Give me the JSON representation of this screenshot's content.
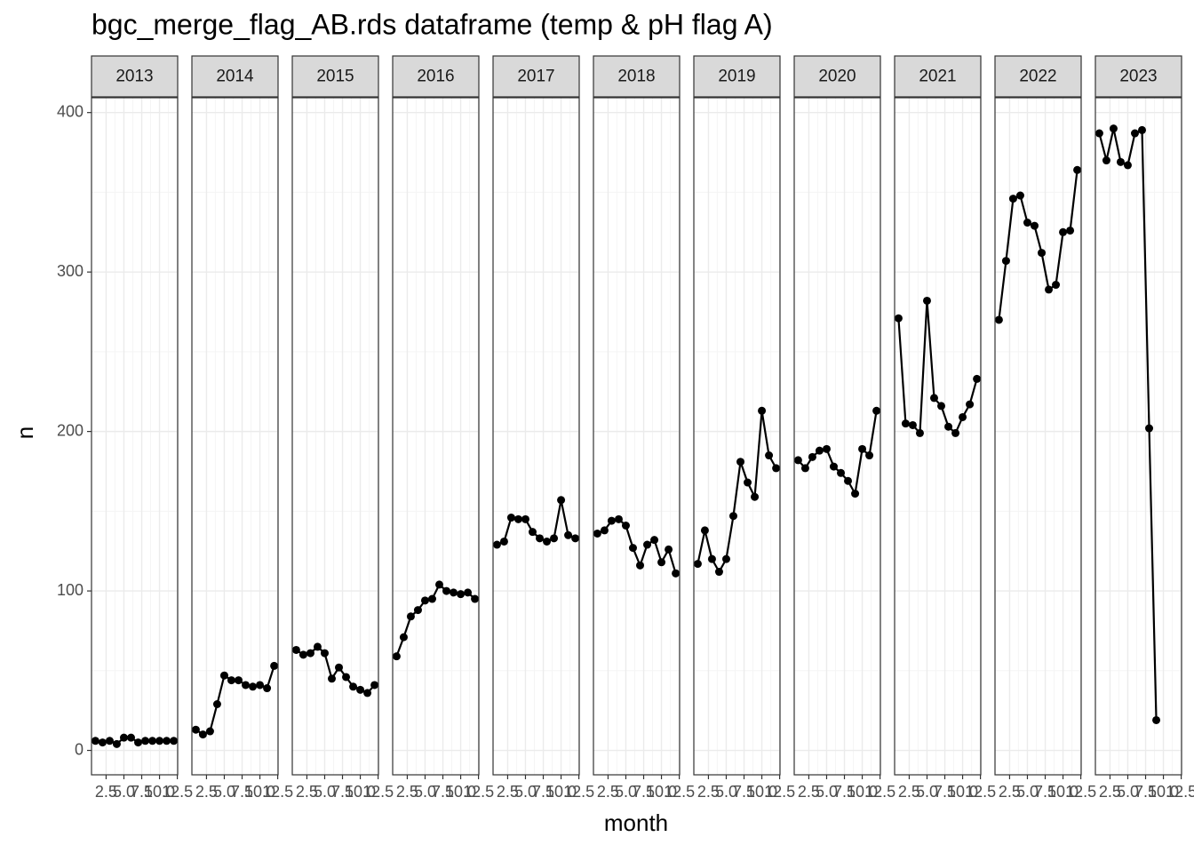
{
  "chart_data": {
    "type": "line",
    "title": "bgc_merge_flag_AB.rds dataframe (temp & pH flag A)",
    "x_label": "month",
    "y_label": "n",
    "xlim": [
      0.45,
      12.55
    ],
    "xticks": [
      2.5,
      {
        "value": 5,
        "label": "5.0"
      },
      7.5,
      {
        "value": 10,
        "label": "10.0"
      },
      12.5
    ],
    "ylim": [
      -15.3,
      409.3
    ],
    "yticks": [
      0,
      100,
      200,
      300,
      400
    ],
    "grid": true,
    "color": "#000000",
    "facets": [
      {
        "name": "2013",
        "x": [
          1,
          2,
          3,
          4,
          5,
          6,
          7,
          8,
          9,
          10,
          11,
          12
        ],
        "values": [
          6,
          5,
          6,
          4,
          8,
          8,
          5,
          6,
          6,
          6,
          6,
          6
        ]
      },
      {
        "name": "2014",
        "x": [
          1,
          2,
          3,
          4,
          5,
          6,
          7,
          8,
          9,
          10,
          11,
          12
        ],
        "values": [
          13,
          10,
          12,
          29,
          47,
          44,
          44,
          41,
          40,
          41,
          39,
          53
        ]
      },
      {
        "name": "2015",
        "x": [
          1,
          2,
          3,
          4,
          5,
          6,
          7,
          8,
          9,
          10,
          11,
          12
        ],
        "values": [
          63,
          60,
          61,
          65,
          61,
          45,
          52,
          46,
          40,
          38,
          36,
          41
        ]
      },
      {
        "name": "2016",
        "x": [
          1,
          2,
          3,
          4,
          5,
          6,
          7,
          8,
          9,
          10,
          11,
          12
        ],
        "values": [
          59,
          71,
          84,
          88,
          94,
          95,
          104,
          100,
          99,
          98,
          99,
          95
        ]
      },
      {
        "name": "2017",
        "x": [
          1,
          2,
          3,
          4,
          5,
          6,
          7,
          8,
          9,
          10,
          11,
          12
        ],
        "values": [
          129,
          131,
          146,
          145,
          145,
          137,
          133,
          131,
          133,
          157,
          135,
          133
        ]
      },
      {
        "name": "2018",
        "x": [
          1,
          2,
          3,
          4,
          5,
          6,
          7,
          8,
          9,
          10,
          11,
          12
        ],
        "values": [
          136,
          138,
          144,
          145,
          141,
          127,
          116,
          129,
          132,
          118,
          126,
          111
        ]
      },
      {
        "name": "2019",
        "x": [
          1,
          2,
          3,
          4,
          5,
          6,
          7,
          8,
          9,
          10,
          11,
          12
        ],
        "values": [
          117,
          138,
          120,
          112,
          120,
          147,
          181,
          168,
          159,
          213,
          185,
          177
        ]
      },
      {
        "name": "2020",
        "x": [
          1,
          2,
          3,
          4,
          5,
          6,
          7,
          8,
          9,
          10,
          11,
          12
        ],
        "values": [
          182,
          177,
          184,
          188,
          189,
          178,
          174,
          169,
          161,
          189,
          185,
          213
        ]
      },
      {
        "name": "2021",
        "x": [
          1,
          2,
          3,
          4,
          5,
          6,
          7,
          8,
          9,
          10,
          11,
          12
        ],
        "values": [
          271,
          205,
          204,
          199,
          282,
          221,
          216,
          203,
          199,
          209,
          217,
          233
        ]
      },
      {
        "name": "2022",
        "x": [
          1,
          2,
          3,
          4,
          5,
          6,
          7,
          8,
          9,
          10,
          11,
          12
        ],
        "values": [
          270,
          307,
          346,
          348,
          331,
          329,
          312,
          289,
          292,
          325,
          326,
          364
        ]
      },
      {
        "name": "2023",
        "x": [
          1,
          2,
          3,
          4,
          5,
          6,
          7,
          8,
          9
        ],
        "values": [
          387,
          370,
          390,
          369,
          367,
          387,
          389,
          202,
          19
        ]
      }
    ]
  }
}
